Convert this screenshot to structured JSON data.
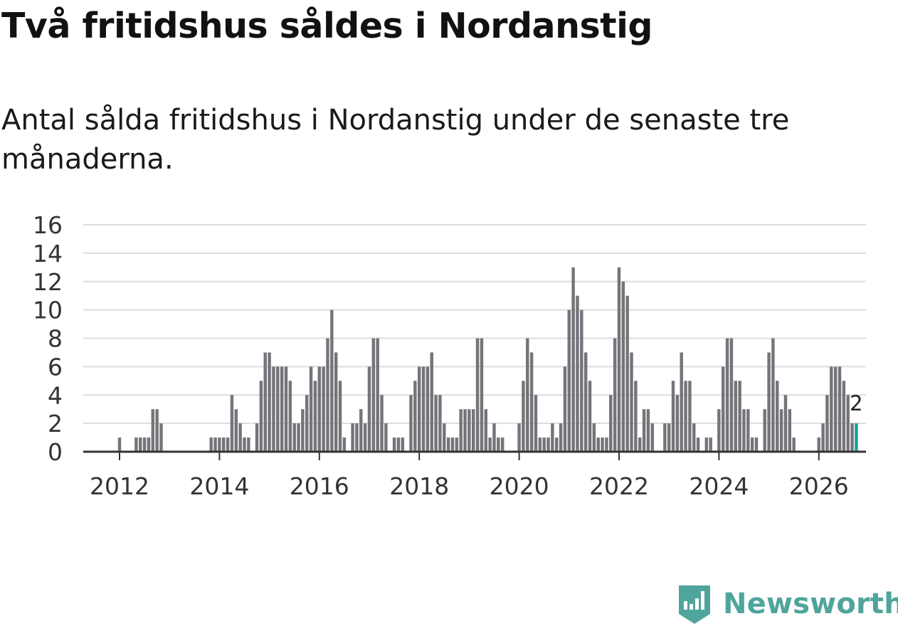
{
  "header": {
    "title": "Två fritidshus såldes i Nordanstig",
    "subtitle": "Antal sålda fritidshus i Nordanstig under de senaste tre månaderna."
  },
  "brand": {
    "name": "Newsworthy"
  },
  "colors": {
    "bar": "#76747a",
    "highlight": "#1a9e96",
    "grid": "#dcdcdc",
    "axis": "#333333",
    "brand": "#4fa59c"
  },
  "chart_data": {
    "type": "bar",
    "title": "Två fritidshus såldes i Nordanstig",
    "subtitle": "Antal sålda fritidshus i Nordanstig under de senaste tre månaderna.",
    "xlabel": "",
    "ylabel": "",
    "ylim": [
      0,
      16
    ],
    "y_ticks": [
      0,
      2,
      4,
      6,
      8,
      10,
      12,
      14,
      16
    ],
    "x_tick_labels": [
      "2012",
      "2014",
      "2016",
      "2018",
      "2020",
      "2022",
      "2024",
      "2026"
    ],
    "x_tick_positions": [
      2012,
      2014,
      2016,
      2018,
      2020,
      2022,
      2024,
      2026
    ],
    "x_start": 2011.25,
    "step": 0.08333,
    "values": [
      0,
      0,
      0,
      0,
      0,
      0,
      0,
      0,
      0,
      1,
      0,
      0,
      0,
      1,
      1,
      1,
      1,
      3,
      3,
      2,
      0,
      0,
      0,
      0,
      0,
      0,
      0,
      0,
      0,
      0,
      0,
      1,
      1,
      1,
      1,
      1,
      4,
      3,
      2,
      1,
      1,
      0,
      2,
      5,
      7,
      7,
      6,
      6,
      6,
      6,
      5,
      2,
      2,
      3,
      4,
      6,
      5,
      6,
      6,
      8,
      10,
      7,
      5,
      1,
      0,
      2,
      2,
      3,
      2,
      6,
      8,
      8,
      4,
      2,
      0,
      1,
      1,
      1,
      0,
      4,
      5,
      6,
      6,
      6,
      7,
      4,
      4,
      2,
      1,
      1,
      1,
      3,
      3,
      3,
      3,
      8,
      8,
      3,
      1,
      2,
      1,
      1,
      0,
      0,
      0,
      2,
      5,
      8,
      7,
      4,
      1,
      1,
      1,
      2,
      1,
      2,
      6,
      10,
      13,
      11,
      10,
      7,
      5,
      2,
      1,
      1,
      1,
      4,
      8,
      13,
      12,
      11,
      7,
      5,
      1,
      3,
      3,
      2,
      0,
      0,
      2,
      2,
      5,
      4,
      7,
      5,
      5,
      2,
      1,
      0,
      1,
      1,
      0,
      3,
      6,
      8,
      8,
      5,
      5,
      3,
      3,
      1,
      1,
      0,
      3,
      7,
      8,
      5,
      3,
      4,
      3,
      1,
      0,
      0,
      0,
      0,
      0,
      1,
      2,
      4,
      6,
      6,
      6,
      5,
      4,
      2,
      2
    ],
    "highlight_last": true,
    "annotations": [
      {
        "label": "2",
        "target": "last_bar"
      }
    ]
  }
}
